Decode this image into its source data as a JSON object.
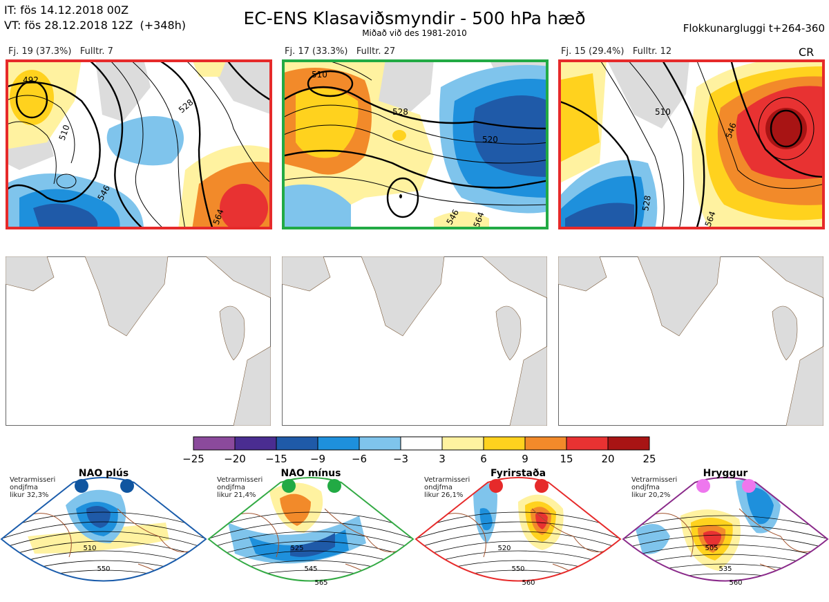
{
  "header": {
    "it": "IT: fös 14.12.2018 00Z",
    "vt": "VT: fös 28.12.2018 12Z  (+348h)",
    "title": "EC-ENS Klasaviðsmyndir - 500 hPa hæð",
    "subtitle": "Miðað við des 1981-2010",
    "window": "Flokkunargluggi t+264-360"
  },
  "clusters": [
    {
      "label": "Fj. 19 (37.3%)",
      "rep": "Fulltr. 7",
      "border": "#e62a2a",
      "contours": [
        "492",
        "510",
        "528",
        "546",
        "564"
      ]
    },
    {
      "label": "Fj. 17 (33.3%)",
      "rep": "Fulltr. 27",
      "border": "#22aa44",
      "contours": [
        "510",
        "528",
        "520",
        "546",
        "564"
      ]
    },
    {
      "label": "Fj. 15 (29.4%)",
      "rep": "Fulltr. 12",
      "border": "#e62a2a",
      "contours": [
        "510",
        "528",
        "546",
        "564"
      ]
    }
  ],
  "cr_label": "CR",
  "colorbar": {
    "ticks": [
      "−25",
      "−20",
      "−15",
      "−9",
      "−6",
      "−3",
      "3",
      "6",
      "9",
      "15",
      "20",
      "25"
    ],
    "colors": [
      "#8b4a9c",
      "#4a2d91",
      "#1f5aa8",
      "#1e90dc",
      "#7fc4ec",
      "#ffffff",
      "#fff2a0",
      "#ffd21e",
      "#f28a2a",
      "#e83232",
      "#a81414"
    ]
  },
  "regimes": [
    {
      "name": "NAO plús",
      "note": "Vetrarmisseri\nondjfma\nlikur 32,3%",
      "color": "#1a5cab",
      "dot": "#0f55a0",
      "contours": [
        "510",
        "550"
      ]
    },
    {
      "name": "NAO mínus",
      "note": "Vetrarmisseri\nondjfma\nlikur 21,4%",
      "color": "#33aa44",
      "dot": "#22aa44",
      "contours": [
        "525",
        "545",
        "565"
      ]
    },
    {
      "name": "Fyrirstaða",
      "note": "Vetrarmisseri\nondjfma\nlikur 26,1%",
      "color": "#e62a2a",
      "dot": "#e62a2a",
      "contours": [
        "520",
        "550",
        "560"
      ]
    },
    {
      "name": "Hryggur",
      "note": "Vetrarmisseri\nondjfma\nlikur 20,2%",
      "color": "#8a2a8a",
      "dot": "#ee77ee",
      "contours": [
        "505",
        "535",
        "560"
      ]
    }
  ]
}
